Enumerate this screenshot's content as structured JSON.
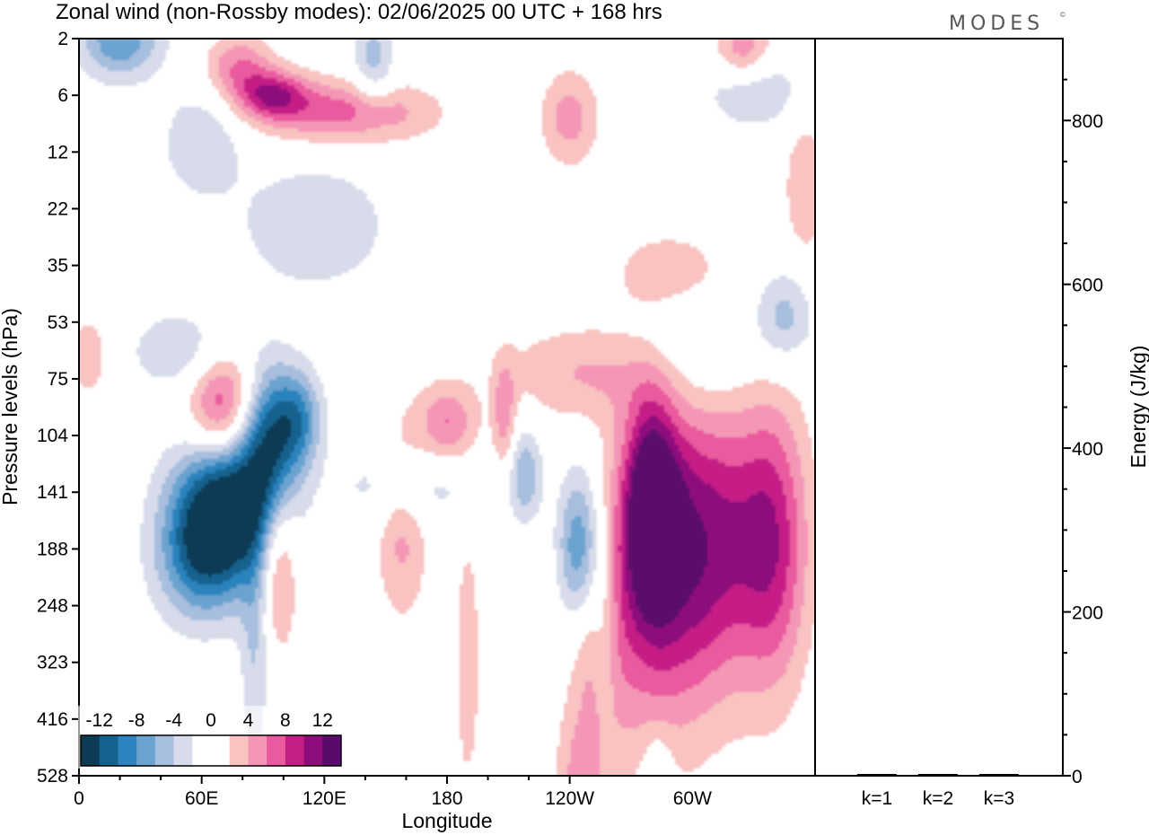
{
  "title": "Zonal wind (non-Rossby modes):  02/06/2025  00 UTC  + 168 hrs",
  "brand": "MODES",
  "brand_mark": "©",
  "colors": {
    "negative": [
      "#0d3b55",
      "#14628f",
      "#2c83bd",
      "#6aa3cf",
      "#a7bede",
      "#d7dbea"
    ],
    "neutral": "#ffffff",
    "positive": [
      "#f8c3c1",
      "#f497b6",
      "#ea5a9e",
      "#c51f86",
      "#8e0d7b",
      "#5a0a6b"
    ],
    "axis": "#000000"
  },
  "chart_data": [
    {
      "type": "heatmap",
      "title": "Zonal wind (non-Rossby modes):  02/06/2025  00 UTC  + 168 hrs",
      "xlabel": "Longitude",
      "ylabel": "Pressure levels (hPa)",
      "x_ticks": [
        "0",
        "60E",
        "120E",
        "180",
        "120W",
        "60W"
      ],
      "x_range": [
        0,
        360
      ],
      "y_levels": [
        "2",
        "6",
        "12",
        "22",
        "35",
        "53",
        "75",
        "104",
        "141",
        "188",
        "248",
        "323",
        "416",
        "528"
      ],
      "colorbar": {
        "ticks": [
          "-12",
          "-8",
          "-4",
          "0",
          "4",
          "8",
          "12"
        ],
        "levels": [
          -14,
          -12,
          -10,
          -8,
          -6,
          -4,
          -2,
          0,
          2,
          4,
          6,
          8,
          10,
          12,
          14
        ]
      },
      "features": [
        {
          "lon": 72,
          "level_index": 8.2,
          "value": -14,
          "sigma_lon": 18,
          "sigma_lev": 0.9
        },
        {
          "lon": 93,
          "level_index": 7.0,
          "value": -10,
          "sigma_lon": 10,
          "sigma_lev": 0.9
        },
        {
          "lon": 60,
          "level_index": 9.2,
          "value": -8,
          "sigma_lon": 16,
          "sigma_lev": 0.8
        },
        {
          "lon": 108,
          "level_index": 6.7,
          "value": -7,
          "sigma_lon": 8,
          "sigma_lev": 0.6
        },
        {
          "lon": 86,
          "level_index": 10.8,
          "value": -4,
          "sigma_lon": 5,
          "sigma_lev": 1.4
        },
        {
          "lon": 245,
          "level_index": 9.0,
          "value": -10,
          "sigma_lon": 8,
          "sigma_lev": 1.0
        },
        {
          "lon": 257,
          "level_index": 10.6,
          "value": -5,
          "sigma_lon": 5,
          "sigma_lev": 1.2
        },
        {
          "lon": 218,
          "level_index": 7.7,
          "value": -6,
          "sigma_lon": 6,
          "sigma_lev": 0.6
        },
        {
          "lon": 20,
          "level_index": 0.0,
          "value": -8,
          "sigma_lon": 14,
          "sigma_lev": 0.5
        },
        {
          "lon": 144,
          "level_index": 0.4,
          "value": -5,
          "sigma_lon": 7,
          "sigma_lev": 0.6
        },
        {
          "lon": 60,
          "level_index": 1.8,
          "value": -4,
          "sigma_lon": 14,
          "sigma_lev": 0.7
        },
        {
          "lon": 115,
          "level_index": 3.3,
          "value": -4,
          "sigma_lon": 26,
          "sigma_lev": 0.8
        },
        {
          "lon": 300,
          "level_index": 5.4,
          "value": -4,
          "sigma_lon": 22,
          "sigma_lev": 0.9
        },
        {
          "lon": 345,
          "level_index": 4.9,
          "value": -5,
          "sigma_lon": 10,
          "sigma_lev": 0.6
        },
        {
          "lon": 330,
          "level_index": 0.9,
          "value": -4,
          "sigma_lon": 18,
          "sigma_lev": 0.5
        },
        {
          "lon": 50,
          "level_index": 5.5,
          "value": -4,
          "sigma_lon": 18,
          "sigma_lev": 0.5
        },
        {
          "lon": 160,
          "level_index": 7.9,
          "value": -4,
          "sigma_lon": 22,
          "sigma_lev": 0.5
        },
        {
          "lon": 283,
          "level_index": 13.3,
          "value": -4,
          "sigma_lon": 5,
          "sigma_lev": 0.7
        },
        {
          "lon": 70,
          "level_index": 6.5,
          "value": 9,
          "sigma_lon": 12,
          "sigma_lev": 0.7
        },
        {
          "lon": 280,
          "level_index": 8.2,
          "value": 12,
          "sigma_lon": 9,
          "sigma_lev": 1.3
        },
        {
          "lon": 305,
          "level_index": 8.8,
          "value": 10,
          "sigma_lon": 24,
          "sigma_lev": 1.8
        },
        {
          "lon": 340,
          "level_index": 8.9,
          "value": 7,
          "sigma_lon": 12,
          "sigma_lev": 1.8
        },
        {
          "lon": 276,
          "level_index": 10.2,
          "value": 5,
          "sigma_lon": 25,
          "sigma_lev": 2.0
        },
        {
          "lon": 98,
          "level_index": 9.3,
          "value": 6,
          "sigma_lon": 6,
          "sigma_lev": 1.0
        },
        {
          "lon": 158,
          "level_index": 8.5,
          "value": 5,
          "sigma_lon": 9,
          "sigma_lev": 1.2
        },
        {
          "lon": 180,
          "level_index": 6.8,
          "value": 6,
          "sigma_lon": 10,
          "sigma_lev": 0.5
        },
        {
          "lon": 208,
          "level_index": 6.7,
          "value": 5,
          "sigma_lon": 4,
          "sigma_lev": 0.7
        },
        {
          "lon": 250,
          "level_index": 5.9,
          "value": 4,
          "sigma_lon": 32,
          "sigma_lev": 0.6
        },
        {
          "lon": 290,
          "level_index": 4.2,
          "value": 4,
          "sigma_lon": 22,
          "sigma_lev": 0.6
        },
        {
          "lon": 95,
          "level_index": 1.0,
          "value": 8,
          "sigma_lon": 12,
          "sigma_lev": 0.3
        },
        {
          "lon": 130,
          "level_index": 1.3,
          "value": 7,
          "sigma_lon": 30,
          "sigma_lev": 0.4
        },
        {
          "lon": 78,
          "level_index": 0.5,
          "value": 6,
          "sigma_lon": 12,
          "sigma_lev": 0.4
        },
        {
          "lon": 325,
          "level_index": 0.2,
          "value": 6,
          "sigma_lon": 10,
          "sigma_lev": 0.4
        },
        {
          "lon": 240,
          "level_index": 1.4,
          "value": 5,
          "sigma_lon": 10,
          "sigma_lev": 0.6
        },
        {
          "lon": 355,
          "level_index": 2.6,
          "value": 4,
          "sigma_lon": 7,
          "sigma_lev": 0.9
        },
        {
          "lon": 5,
          "level_index": 5.6,
          "value": 4,
          "sigma_lon": 6,
          "sigma_lev": 0.5
        },
        {
          "lon": 245,
          "level_index": 13.1,
          "value": 4,
          "sigma_lon": 8,
          "sigma_lev": 0.8
        },
        {
          "lon": 255,
          "level_index": 10.8,
          "value": 4,
          "sigma_lon": 8,
          "sigma_lev": 1.5
        },
        {
          "lon": 190,
          "level_index": 11.0,
          "value": 4,
          "sigma_lon": 4,
          "sigma_lev": 1.5
        }
      ]
    },
    {
      "type": "bar",
      "categories": [
        "k=1",
        "k=2",
        "k=3"
      ],
      "values": [
        1,
        1,
        1
      ],
      "ylabel": "Energy (J/kg)",
      "ylim": [
        0,
        900
      ],
      "y_ticks": [
        "0",
        "200",
        "400",
        "600",
        "800"
      ]
    }
  ]
}
